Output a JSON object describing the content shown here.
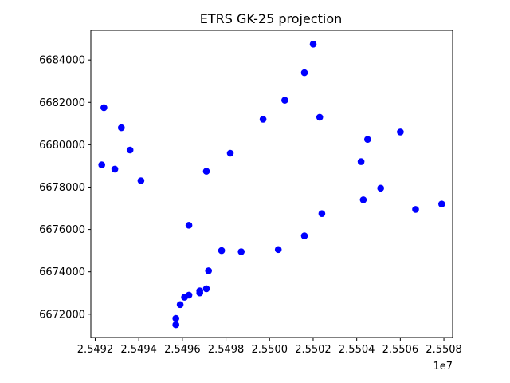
{
  "chart_data": {
    "type": "scatter",
    "title": "ETRS GK-25 projection",
    "xlabel": "",
    "ylabel": "",
    "x_offset_label": "1e7",
    "xlim": [
      25491800,
      25508400
    ],
    "ylim": [
      6670900,
      6685400
    ],
    "x_ticks": [
      25492000,
      25494000,
      25496000,
      25498000,
      25500000,
      25502000,
      25504000,
      25506000,
      25508000
    ],
    "x_tick_labels": [
      "2.5492",
      "2.5494",
      "2.5496",
      "2.5498",
      "2.5500",
      "2.5502",
      "2.5504",
      "2.5506",
      "2.5508"
    ],
    "y_ticks": [
      6672000,
      6674000,
      6676000,
      6678000,
      6680000,
      6682000,
      6684000
    ],
    "y_tick_labels": [
      "6672000",
      "6674000",
      "6676000",
      "6678000",
      "6680000",
      "6682000",
      "6684000"
    ],
    "grid": false,
    "marker_color": "#0000ff",
    "series": [
      {
        "points": [
          [
            25492400,
            6681750
          ],
          [
            25492300,
            6679050
          ],
          [
            25492900,
            6678850
          ],
          [
            25493200,
            6680800
          ],
          [
            25493600,
            6679750
          ],
          [
            25494100,
            6678300
          ],
          [
            25496300,
            6676200
          ],
          [
            25497100,
            6678750
          ],
          [
            25498200,
            6679600
          ],
          [
            25499700,
            6681200
          ],
          [
            25500700,
            6682100
          ],
          [
            25501600,
            6683400
          ],
          [
            25502000,
            6684750
          ],
          [
            25502300,
            6681300
          ],
          [
            25504200,
            6679200
          ],
          [
            25504500,
            6680250
          ],
          [
            25506000,
            6680600
          ],
          [
            25505100,
            6677950
          ],
          [
            25504300,
            6677400
          ],
          [
            25502400,
            6676750
          ],
          [
            25501600,
            6675700
          ],
          [
            25500400,
            6675050
          ],
          [
            25498700,
            6674950
          ],
          [
            25497800,
            6675000
          ],
          [
            25497200,
            6674050
          ],
          [
            25497100,
            6673200
          ],
          [
            25496800,
            6673100
          ],
          [
            25496800,
            6673000
          ],
          [
            25496300,
            6672900
          ],
          [
            25496100,
            6672800
          ],
          [
            25495900,
            6672450
          ],
          [
            25495700,
            6671800
          ],
          [
            25495700,
            6671500
          ],
          [
            25506700,
            6676950
          ],
          [
            25507900,
            6677200
          ]
        ]
      }
    ]
  }
}
